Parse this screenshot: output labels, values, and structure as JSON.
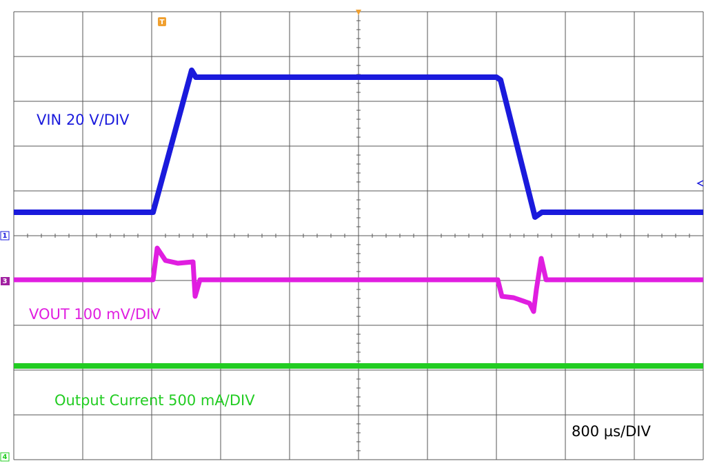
{
  "scope": {
    "traces": [
      {
        "label": "VIN  20 V/DIV",
        "color": "#1a1adc"
      },
      {
        "label": "VOUT  100 mV/DIV",
        "color": "#e01ee0"
      },
      {
        "label": "Output Current  500 mA/DIV",
        "color": "#22cc22"
      }
    ],
    "timebase": "800 µs/DIV",
    "markers": {
      "trigger": "T",
      "ch1": "1",
      "ch3": "3",
      "ch4": "4"
    }
  }
}
